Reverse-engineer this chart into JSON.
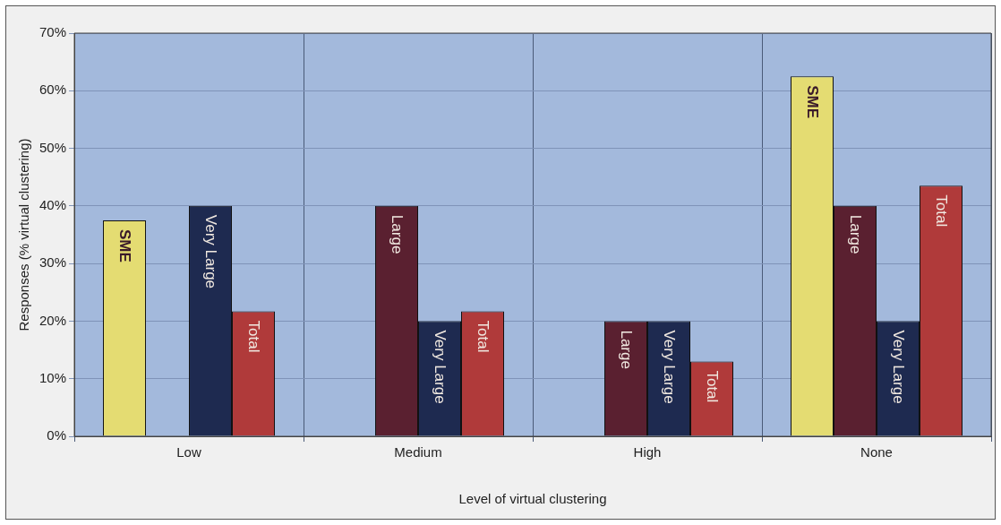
{
  "chart_data": {
    "type": "bar",
    "xlabel": "Level of virtual clustering",
    "ylabel": "Responses (% virtual clustering)",
    "categories": [
      "Low",
      "Medium",
      "High",
      "None"
    ],
    "series": [
      {
        "name": "SME",
        "color": "#e4dc72",
        "values": [
          37.5,
          null,
          null,
          62.5
        ]
      },
      {
        "name": "Large",
        "color": "#5a2030",
        "values": [
          null,
          40,
          20,
          40
        ]
      },
      {
        "name": "Very Large",
        "color": "#1e2a50",
        "values": [
          40,
          20,
          20,
          20
        ]
      },
      {
        "name": "Total",
        "color": "#b03a3a",
        "values": [
          21.7,
          21.7,
          13,
          43.5
        ]
      }
    ],
    "ylim": [
      0,
      70
    ],
    "yticks": [
      {
        "value": 0,
        "label": "0%"
      },
      {
        "value": 10,
        "label": "10%"
      },
      {
        "value": 20,
        "label": "20%"
      },
      {
        "value": 30,
        "label": "30%"
      },
      {
        "value": 40,
        "label": "40%"
      },
      {
        "value": 50,
        "label": "50%"
      },
      {
        "value": 60,
        "label": "60%"
      },
      {
        "value": 70,
        "label": "70%"
      }
    ],
    "grid": true,
    "legend": false
  }
}
